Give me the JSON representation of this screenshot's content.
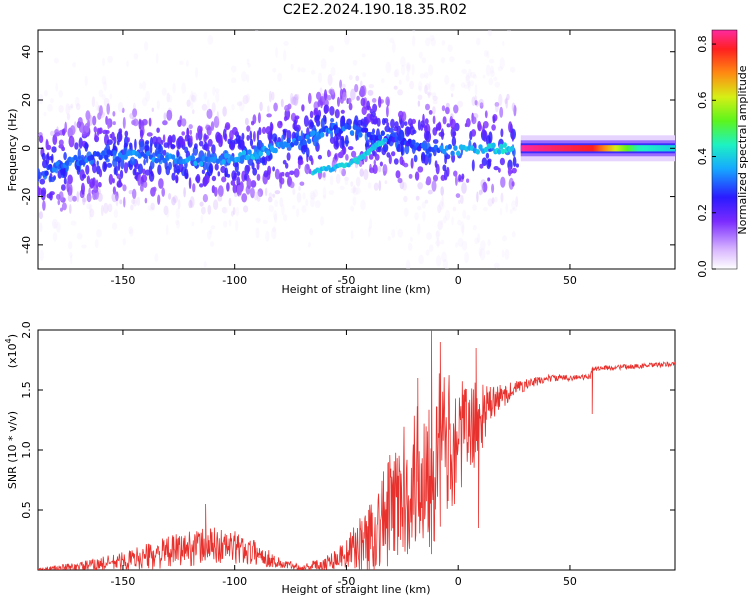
{
  "title": "C2E2.2024.190.18.35.R02",
  "colors": {
    "snr_line": "#e8302c",
    "axis": "#000000"
  },
  "chart_data": [
    {
      "type": "heatmap",
      "xlabel": "Height of straight line (km)",
      "ylabel": "Frequency (Hz)",
      "xlim": [
        -188,
        97
      ],
      "ylim": [
        -50,
        49
      ],
      "xticks": [
        -150,
        -100,
        -50,
        0,
        50
      ],
      "yticks": [
        -40,
        -20,
        0,
        20,
        40
      ],
      "colorbar": {
        "label": "Normalized spectral amplitude",
        "range": [
          0,
          0.85
        ],
        "ticks": [
          0.0,
          0.2,
          0.4,
          0.6,
          0.8
        ]
      },
      "ridge": [
        {
          "x": -185,
          "y": -10,
          "amp": 0.3
        },
        {
          "x": -175,
          "y": -6,
          "amp": 0.32
        },
        {
          "x": -160,
          "y": -3,
          "amp": 0.3
        },
        {
          "x": -145,
          "y": -3,
          "amp": 0.32
        },
        {
          "x": -130,
          "y": -4,
          "amp": 0.33
        },
        {
          "x": -115,
          "y": -5,
          "amp": 0.34
        },
        {
          "x": -100,
          "y": -4,
          "amp": 0.36
        },
        {
          "x": -90,
          "y": -2,
          "amp": 0.36
        },
        {
          "x": -80,
          "y": 1,
          "amp": 0.35
        },
        {
          "x": -70,
          "y": 3,
          "amp": 0.3
        },
        {
          "x": -62,
          "y": 6,
          "amp": 0.32
        },
        {
          "x": -55,
          "y": 9,
          "amp": 0.3
        },
        {
          "x": -40,
          "y": 6,
          "amp": 0.28
        },
        {
          "x": -25,
          "y": 3,
          "amp": 0.25
        },
        {
          "x": -15,
          "y": 0,
          "amp": 0.28
        },
        {
          "x": 0,
          "y": -1,
          "amp": 0.35
        },
        {
          "x": 15,
          "y": 0,
          "amp": 0.38
        },
        {
          "x": 25,
          "y": 0,
          "amp": 0.4
        }
      ],
      "secondary_ridge": [
        {
          "x": -65,
          "y": -10,
          "amp": 0.38
        },
        {
          "x": -55,
          "y": -8,
          "amp": 0.38
        },
        {
          "x": -45,
          "y": -5,
          "amp": 0.4
        },
        {
          "x": -38,
          "y": 0,
          "amp": 0.4
        },
        {
          "x": -32,
          "y": 4,
          "amp": 0.38
        }
      ],
      "stable_band": {
        "x": [
          28,
          97
        ],
        "y": 0,
        "amp_profile": [
          {
            "x": 28,
            "amp": 0.85
          },
          {
            "x": 60,
            "amp": 0.78
          },
          {
            "x": 80,
            "amp": 0.45
          },
          {
            "x": 97,
            "amp": 0.4
          }
        ]
      }
    },
    {
      "type": "line",
      "xlabel": "Height of straight line (km)",
      "ylabel": "SNR (10 * v/v)",
      "scale_label": "(x10",
      "scale_exp": "4",
      "scale_close": ")",
      "xlim": [
        -188,
        97
      ],
      "ylim": [
        0,
        2.0
      ],
      "xticks": [
        -150,
        -100,
        -50,
        0,
        50
      ],
      "yticks": [
        0.5,
        1.0,
        1.5,
        2.0
      ],
      "envelope": [
        {
          "x": -188,
          "base": 0.0,
          "amp": 0.02
        },
        {
          "x": -170,
          "base": 0.03,
          "amp": 0.04
        },
        {
          "x": -150,
          "base": 0.08,
          "amp": 0.08
        },
        {
          "x": -135,
          "base": 0.14,
          "amp": 0.12
        },
        {
          "x": -120,
          "base": 0.2,
          "amp": 0.15
        },
        {
          "x": -110,
          "base": 0.22,
          "amp": 0.16
        },
        {
          "x": -100,
          "base": 0.2,
          "amp": 0.14
        },
        {
          "x": -90,
          "base": 0.15,
          "amp": 0.1
        },
        {
          "x": -80,
          "base": 0.06,
          "amp": 0.05
        },
        {
          "x": -70,
          "base": 0.02,
          "amp": 0.03
        },
        {
          "x": -60,
          "base": 0.06,
          "amp": 0.06
        },
        {
          "x": -50,
          "base": 0.15,
          "amp": 0.12
        },
        {
          "x": -40,
          "base": 0.3,
          "amp": 0.3
        },
        {
          "x": -30,
          "base": 0.55,
          "amp": 0.5
        },
        {
          "x": -20,
          "base": 0.8,
          "amp": 0.6
        },
        {
          "x": -12,
          "base": 1.0,
          "amp": 0.8
        },
        {
          "x": -5,
          "base": 1.1,
          "amp": 0.6
        },
        {
          "x": 0,
          "base": 1.15,
          "amp": 0.5
        },
        {
          "x": 8,
          "base": 1.25,
          "amp": 0.35
        },
        {
          "x": 15,
          "base": 1.4,
          "amp": 0.15
        },
        {
          "x": 25,
          "base": 1.52,
          "amp": 0.06
        },
        {
          "x": 40,
          "base": 1.6,
          "amp": 0.03
        },
        {
          "x": 59,
          "base": 1.61,
          "amp": 0.02
        },
        {
          "x": 60,
          "base": 1.68,
          "amp": 0.02
        },
        {
          "x": 80,
          "base": 1.7,
          "amp": 0.02
        },
        {
          "x": 97,
          "base": 1.72,
          "amp": 0.02
        }
      ],
      "spikes": [
        {
          "x": -113,
          "y": 0.55
        },
        {
          "x": -12,
          "y": 2.0
        },
        {
          "x": -8,
          "y": 1.9
        },
        {
          "x": -18,
          "y": 1.6
        },
        {
          "x": 8,
          "y": 1.85
        },
        {
          "x": 9,
          "y": 0.35
        },
        {
          "x": 60,
          "y": 1.3
        }
      ]
    }
  ]
}
